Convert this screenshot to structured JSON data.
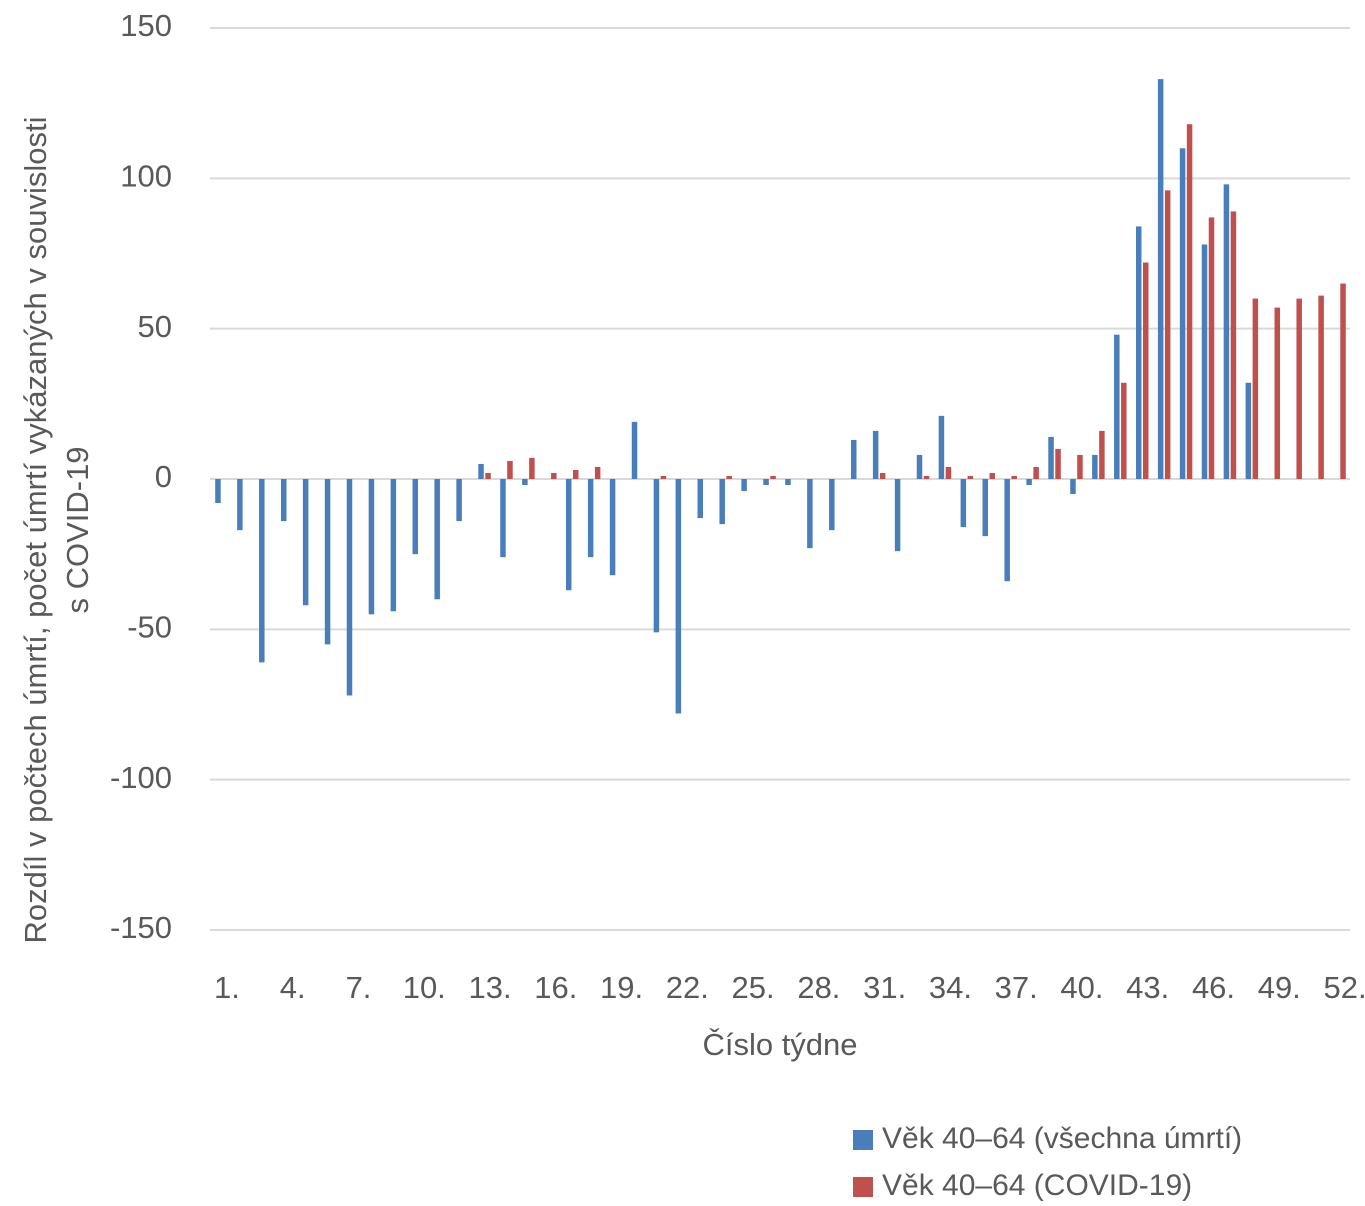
{
  "chart_data": {
    "type": "bar",
    "y_label": [
      "Rozdíl v počtech úmrtí, počet úmrtí vykázaných v souvislosti",
      "s COVID-19"
    ],
    "x_label": "Číslo týdne",
    "categories": [
      "1.",
      null,
      null,
      "4.",
      null,
      null,
      "7.",
      null,
      null,
      "10.",
      null,
      null,
      "13.",
      null,
      null,
      "16.",
      null,
      null,
      "19.",
      null,
      null,
      "22.",
      null,
      null,
      "25.",
      null,
      null,
      "28.",
      null,
      null,
      "31.",
      null,
      null,
      "34.",
      null,
      null,
      "37.",
      null,
      null,
      "40.",
      null,
      null,
      "43.",
      null,
      null,
      "46.",
      null,
      null,
      "49.",
      null,
      null,
      "52."
    ],
    "series": [
      {
        "name": "Věk 40–64 (všechna úmrtí)",
        "color": "#4a7ebb",
        "values": [
          -8,
          -17,
          -61,
          -14,
          -42,
          -55,
          -72,
          -45,
          -44,
          -25,
          -40,
          -14,
          5,
          -26,
          -2,
          0,
          -37,
          -26,
          -32,
          19,
          -51,
          -78,
          -13,
          -15,
          -4,
          -2,
          -2,
          -23,
          -17,
          13,
          16,
          -24,
          8,
          21,
          -16,
          -19,
          -34,
          -2,
          14,
          -5,
          8,
          48,
          84,
          133,
          110,
          78,
          98,
          32,
          null,
          null,
          null,
          null
        ]
      },
      {
        "name": "Věk 40–64 (COVID-19)",
        "color": "#c0504d",
        "values": [
          0,
          0,
          0,
          0,
          0,
          0,
          0,
          0,
          0,
          0,
          0,
          0,
          2,
          6,
          7,
          2,
          3,
          4,
          0,
          0,
          1,
          0,
          0,
          1,
          0,
          1,
          0,
          0,
          0,
          0,
          2,
          0,
          1,
          4,
          1,
          2,
          1,
          4,
          10,
          8,
          16,
          32,
          72,
          96,
          118,
          87,
          89,
          60,
          57,
          60,
          61,
          65
        ]
      }
    ],
    "ylim": [
      -150,
      150
    ],
    "yticks": [
      -150,
      -100,
      -50,
      0,
      50,
      100,
      150
    ],
    "grid": true,
    "legend": "bottom-right"
  }
}
